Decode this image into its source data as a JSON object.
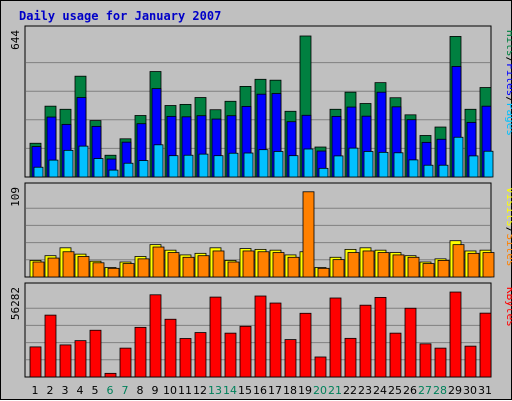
{
  "title": "Daily usage for January 2007",
  "chart_data": [
    {
      "type": "bar",
      "name": "Hits / Files / Pages",
      "label_parts": [
        "Pages",
        "/",
        "Files",
        "/",
        "Hits"
      ],
      "label_colors": [
        "#00c0ff",
        "#000000",
        "#0000ff",
        "#000000",
        "#008040"
      ],
      "ymax": 644,
      "ymax_label": "644",
      "categories": [
        "1",
        "2",
        "3",
        "4",
        "5",
        "6",
        "7",
        "8",
        "9",
        "10",
        "11",
        "12",
        "13",
        "14",
        "15",
        "16",
        "17",
        "18",
        "19",
        "20",
        "21",
        "22",
        "23",
        "24",
        "25",
        "26",
        "27",
        "28",
        "29",
        "30",
        "31"
      ],
      "series": [
        {
          "name": "Hits",
          "color": "#008040",
          "values": [
            152,
            319,
            305,
            454,
            254,
            98,
            172,
            277,
            475,
            322,
            327,
            358,
            303,
            341,
            408,
            440,
            436,
            296,
            635,
            135,
            305,
            382,
            331,
            425,
            357,
            280,
            187,
            225,
            633,
            305,
            403
          ]
        },
        {
          "name": "Files",
          "color": "#0000ff",
          "values": [
            137,
            270,
            237,
            358,
            228,
            81,
            157,
            240,
            398,
            273,
            271,
            276,
            261,
            276,
            318,
            373,
            376,
            249,
            278,
            117,
            273,
            315,
            274,
            382,
            316,
            258,
            156,
            170,
            498,
            246,
            319
          ]
        },
        {
          "name": "Pages",
          "color": "#00c0ff",
          "values": [
            44,
            76,
            120,
            139,
            83,
            31,
            62,
            74,
            145,
            96,
            98,
            103,
            96,
            107,
            108,
            123,
            115,
            96,
            126,
            39,
            95,
            130,
            115,
            111,
            109,
            77,
            53,
            53,
            179,
            95,
            116
          ]
        }
      ]
    },
    {
      "type": "bar",
      "name": "Visits / Sites",
      "label_parts": [
        "Sites",
        "/",
        "Visits"
      ],
      "label_colors": [
        "#ff8000",
        "#000000",
        "#ffff00"
      ],
      "ymax": 109,
      "ymax_label": "109",
      "categories": [
        "1",
        "2",
        "3",
        "4",
        "5",
        "6",
        "7",
        "8",
        "9",
        "10",
        "11",
        "12",
        "13",
        "14",
        "15",
        "16",
        "17",
        "18",
        "19",
        "20",
        "21",
        "22",
        "23",
        "24",
        "25",
        "26",
        "27",
        "28",
        "29",
        "30",
        "31"
      ],
      "series": [
        {
          "name": "Visits",
          "color": "#ffff00",
          "values": [
            21,
            27,
            37,
            29,
            20,
            12,
            19,
            26,
            41,
            34,
            28,
            30,
            37,
            21,
            36,
            35,
            34,
            28,
            32,
            12,
            25,
            35,
            37,
            34,
            31,
            27,
            19,
            23,
            46,
            33,
            34
          ]
        },
        {
          "name": "Sites",
          "color": "#ff8000",
          "values": [
            19,
            24,
            32,
            26,
            18,
            11,
            17,
            23,
            38,
            31,
            25,
            27,
            33,
            19,
            33,
            32,
            31,
            25,
            108,
            11,
            22,
            31,
            33,
            31,
            28,
            25,
            17,
            21,
            41,
            30,
            31
          ]
        }
      ]
    },
    {
      "type": "bar",
      "name": "KBytes",
      "label_parts": [
        "KBytes"
      ],
      "label_colors": [
        "#ff0000"
      ],
      "ymax": 56282,
      "ymax_label": "56282",
      "categories": [
        "1",
        "2",
        "3",
        "4",
        "5",
        "6",
        "7",
        "8",
        "9",
        "10",
        "11",
        "12",
        "13",
        "14",
        "15",
        "16",
        "17",
        "18",
        "19",
        "20",
        "21",
        "22",
        "23",
        "24",
        "25",
        "26",
        "27",
        "28",
        "29",
        "30",
        "31"
      ],
      "series": [
        {
          "name": "KBytes",
          "color": "#ff0000",
          "values": [
            19700,
            40500,
            21000,
            23800,
            30600,
            2400,
            18900,
            32500,
            53800,
            37800,
            25200,
            29100,
            52300,
            28700,
            33200,
            53000,
            48400,
            24500,
            41700,
            13100,
            51700,
            25300,
            47000,
            52100,
            28700,
            45000,
            21700,
            18900,
            55600,
            20200,
            41800
          ]
        }
      ]
    }
  ],
  "x_axis": {
    "labels": [
      "1",
      "2",
      "3",
      "4",
      "5",
      "6",
      "7",
      "8",
      "9",
      "10",
      "11",
      "12",
      "13",
      "14",
      "15",
      "16",
      "17",
      "18",
      "19",
      "20",
      "21",
      "22",
      "23",
      "24",
      "25",
      "26",
      "27",
      "28",
      "29",
      "30",
      "31"
    ],
    "weekend_days": [
      "6",
      "7",
      "13",
      "14",
      "20",
      "21",
      "27",
      "28"
    ],
    "weekday_color": "#000000",
    "weekend_color": "#00805a"
  },
  "colors": {
    "background": "#c0c0c0",
    "plot_bg": "#c0c0c0",
    "grid": "#808080"
  }
}
